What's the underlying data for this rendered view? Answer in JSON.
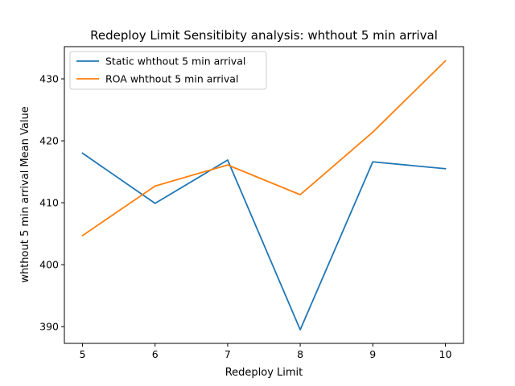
{
  "chart_data": {
    "type": "line",
    "title": "Redeploy Limit Sensitibity analysis: whthout 5 min arrival",
    "xlabel": "Redeploy Limit",
    "ylabel": "whthout 5 min arrival Mean Value",
    "x": [
      5,
      6,
      7,
      8,
      9,
      10
    ],
    "xlim": [
      4.75,
      10.25
    ],
    "ylim": [
      387.3,
      435.2
    ],
    "xticks": [
      5,
      6,
      7,
      8,
      9,
      10
    ],
    "yticks": [
      390,
      400,
      410,
      420,
      430
    ],
    "grid": false,
    "legend_position": "top-left",
    "series": [
      {
        "name": "Static whthout 5 min arrival",
        "color": "#1f77b4",
        "values": [
          418.0,
          409.9,
          416.9,
          389.5,
          416.6,
          415.5
        ]
      },
      {
        "name": "ROA whthout 5 min arrival",
        "color": "#ff7f0e",
        "values": [
          404.7,
          412.7,
          416.1,
          411.3,
          421.4,
          432.9
        ]
      }
    ]
  }
}
